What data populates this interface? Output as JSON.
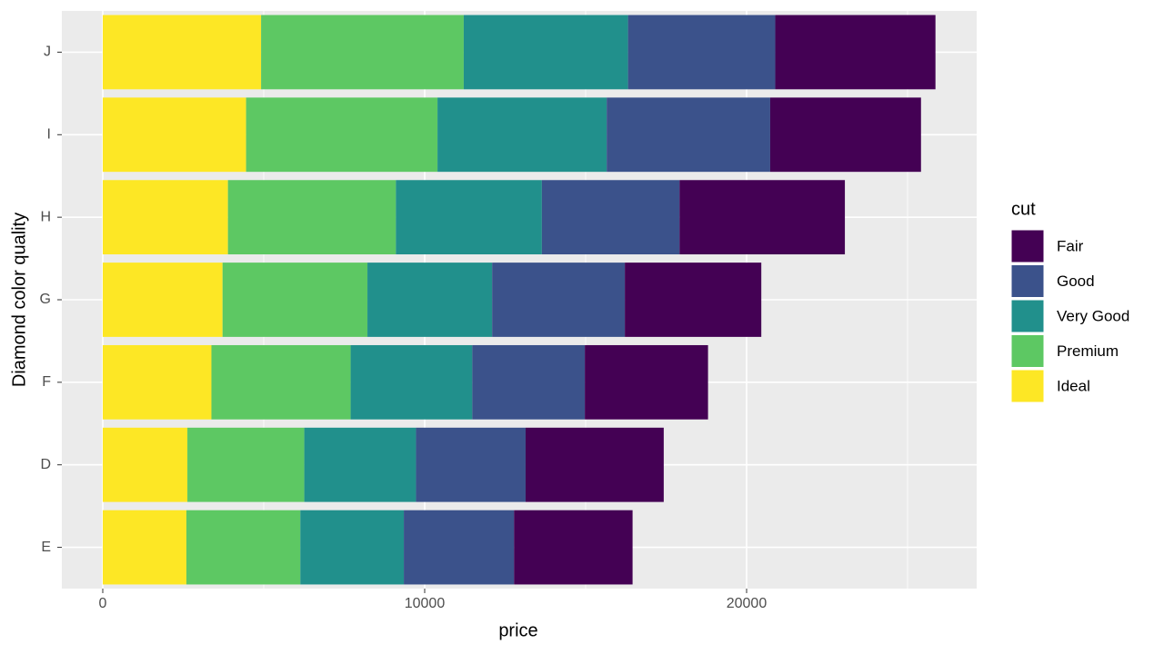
{
  "chart_data": {
    "type": "bar",
    "orientation": "horizontal",
    "stacked": true,
    "x_label": "price",
    "y_label": "Diamond color quality",
    "legend_title": "cut",
    "categories": [
      "J",
      "I",
      "H",
      "G",
      "F",
      "D",
      "E"
    ],
    "series": [
      {
        "name": "Fair",
        "color": "#440154",
        "values": [
          4976,
          4685,
          5136,
          4239,
          3827,
          4291,
          3682
        ]
      },
      {
        "name": "Good",
        "color": "#3B528B",
        "values": [
          4574,
          5079,
          4276,
          4123,
          3496,
          3405,
          3424
        ]
      },
      {
        "name": "Very Good",
        "color": "#21908C",
        "values": [
          5104,
          5256,
          4535,
          3873,
          3779,
          3470,
          3215
        ]
      },
      {
        "name": "Premium",
        "color": "#5DC863",
        "values": [
          6295,
          5946,
          5217,
          4501,
          4325,
          3631,
          3539
        ]
      },
      {
        "name": "Ideal",
        "color": "#FDE725",
        "values": [
          4918,
          4452,
          3889,
          3721,
          3375,
          2629,
          2598
        ]
      }
    ],
    "xlim": [
      -1271,
      27147
    ],
    "xticks": [
      0,
      10000,
      20000
    ],
    "x_minor_grid": [
      5000,
      15000,
      25000
    ],
    "grid": true,
    "legend_position": "right"
  }
}
